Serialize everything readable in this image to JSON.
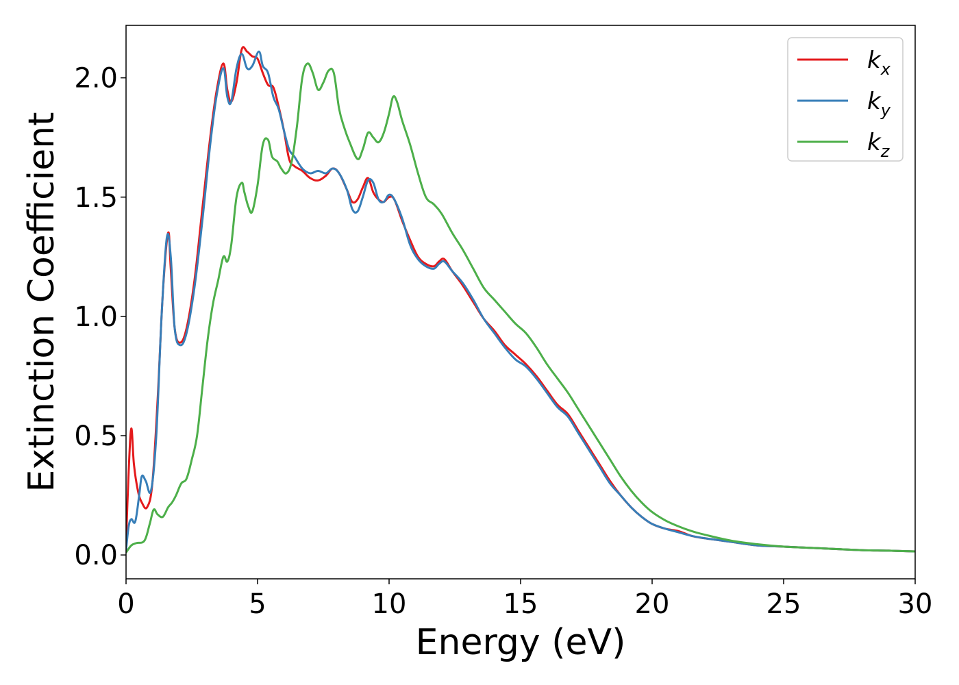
{
  "chart_data": {
    "type": "line",
    "xlabel": "Energy (eV)",
    "ylabel": "Extinction Coefficient",
    "xlim": [
      0,
      30
    ],
    "ylim": [
      -0.1,
      2.22
    ],
    "x_ticks": [
      0,
      5,
      10,
      15,
      20,
      25,
      30
    ],
    "x_tick_labels": [
      "0",
      "5",
      "10",
      "15",
      "20",
      "25",
      "30"
    ],
    "y_ticks": [
      0.0,
      0.5,
      1.0,
      1.5,
      2.0
    ],
    "y_tick_labels": [
      "0.0",
      "0.5",
      "1.0",
      "1.5",
      "2.0"
    ],
    "grid": false,
    "legend_position": "top-right",
    "series": [
      {
        "name": "kx",
        "legend_base": "k",
        "legend_sub": "x",
        "color": "#e41a1c",
        "x": [
          0,
          0.1,
          0.2,
          0.3,
          0.45,
          0.6,
          0.8,
          1.0,
          1.2,
          1.4,
          1.6,
          1.7,
          1.85,
          2.05,
          2.3,
          2.6,
          2.9,
          3.2,
          3.45,
          3.7,
          3.85,
          4.0,
          4.2,
          4.4,
          4.6,
          4.8,
          5.0,
          5.2,
          5.4,
          5.6,
          5.8,
          6.0,
          6.2,
          6.4,
          6.7,
          7.0,
          7.3,
          7.6,
          7.85,
          8.1,
          8.4,
          8.6,
          8.8,
          9.0,
          9.2,
          9.4,
          9.6,
          9.8,
          10.0,
          10.2,
          10.5,
          10.8,
          11.1,
          11.4,
          11.7,
          11.9,
          12.1,
          12.4,
          12.8,
          13.2,
          13.6,
          14.0,
          14.4,
          14.8,
          15.2,
          15.6,
          16.0,
          16.4,
          16.8,
          17.2,
          17.6,
          18.0,
          18.4,
          18.8,
          19.2,
          19.6,
          20.0,
          20.5,
          21.0,
          21.5,
          22.0,
          23.0,
          24.0,
          25.0,
          26.0,
          27.0,
          28.0,
          29.0,
          30.0
        ],
        "y": [
          0.05,
          0.35,
          0.53,
          0.38,
          0.27,
          0.22,
          0.2,
          0.3,
          0.65,
          1.1,
          1.35,
          1.2,
          0.95,
          0.89,
          0.95,
          1.15,
          1.45,
          1.75,
          1.95,
          2.06,
          1.95,
          1.9,
          1.98,
          2.12,
          2.11,
          2.09,
          2.08,
          2.02,
          1.97,
          1.96,
          1.88,
          1.78,
          1.66,
          1.63,
          1.61,
          1.58,
          1.57,
          1.59,
          1.62,
          1.6,
          1.53,
          1.48,
          1.49,
          1.54,
          1.58,
          1.52,
          1.49,
          1.48,
          1.5,
          1.49,
          1.4,
          1.32,
          1.25,
          1.22,
          1.21,
          1.23,
          1.24,
          1.19,
          1.13,
          1.06,
          0.99,
          0.94,
          0.88,
          0.84,
          0.8,
          0.75,
          0.69,
          0.63,
          0.59,
          0.52,
          0.45,
          0.38,
          0.31,
          0.25,
          0.2,
          0.16,
          0.13,
          0.11,
          0.1,
          0.08,
          0.07,
          0.055,
          0.04,
          0.035,
          0.03,
          0.025,
          0.02,
          0.018,
          0.015
        ]
      },
      {
        "name": "ky",
        "legend_base": "k",
        "legend_sub": "y",
        "color": "#377eb8",
        "x": [
          0,
          0.1,
          0.2,
          0.35,
          0.5,
          0.6,
          0.75,
          0.95,
          1.15,
          1.35,
          1.55,
          1.7,
          1.85,
          2.05,
          2.3,
          2.6,
          2.9,
          3.2,
          3.45,
          3.7,
          3.85,
          4.0,
          4.2,
          4.4,
          4.6,
          4.8,
          5.05,
          5.2,
          5.4,
          5.6,
          5.8,
          6.0,
          6.2,
          6.4,
          6.7,
          7.0,
          7.3,
          7.6,
          7.85,
          8.1,
          8.4,
          8.6,
          8.8,
          9.0,
          9.2,
          9.4,
          9.6,
          9.8,
          10.0,
          10.2,
          10.5,
          10.8,
          11.1,
          11.4,
          11.7,
          11.9,
          12.1,
          12.4,
          12.8,
          13.2,
          13.6,
          14.0,
          14.4,
          14.8,
          15.2,
          15.6,
          16.0,
          16.4,
          16.8,
          17.2,
          17.6,
          18.0,
          18.4,
          18.8,
          19.2,
          19.6,
          20.0,
          20.5,
          21.0,
          21.5,
          22.0,
          23.0,
          24.0,
          25.0,
          26.0,
          27.0,
          28.0,
          29.0,
          30.0
        ],
        "y": [
          0.02,
          0.12,
          0.15,
          0.14,
          0.25,
          0.33,
          0.31,
          0.27,
          0.5,
          1.0,
          1.33,
          1.25,
          0.95,
          0.88,
          0.93,
          1.12,
          1.4,
          1.72,
          1.93,
          2.04,
          1.92,
          1.9,
          2.04,
          2.1,
          2.04,
          2.05,
          2.11,
          2.05,
          2.02,
          1.92,
          1.87,
          1.78,
          1.7,
          1.67,
          1.62,
          1.6,
          1.61,
          1.6,
          1.62,
          1.6,
          1.53,
          1.45,
          1.44,
          1.5,
          1.57,
          1.56,
          1.49,
          1.48,
          1.51,
          1.49,
          1.41,
          1.3,
          1.24,
          1.21,
          1.2,
          1.22,
          1.23,
          1.19,
          1.14,
          1.07,
          0.99,
          0.93,
          0.87,
          0.82,
          0.79,
          0.74,
          0.68,
          0.62,
          0.58,
          0.51,
          0.44,
          0.37,
          0.3,
          0.25,
          0.2,
          0.16,
          0.13,
          0.11,
          0.095,
          0.08,
          0.07,
          0.055,
          0.04,
          0.035,
          0.03,
          0.025,
          0.02,
          0.018,
          0.015
        ]
      },
      {
        "name": "kz",
        "legend_base": "k",
        "legend_sub": "z",
        "color": "#4daf4a",
        "x": [
          0,
          0.2,
          0.4,
          0.7,
          0.9,
          1.05,
          1.2,
          1.4,
          1.6,
          1.75,
          1.9,
          2.1,
          2.3,
          2.5,
          2.7,
          2.9,
          3.1,
          3.3,
          3.5,
          3.7,
          3.85,
          4.0,
          4.2,
          4.4,
          4.5,
          4.65,
          4.8,
          5.0,
          5.2,
          5.4,
          5.55,
          5.75,
          5.9,
          6.1,
          6.3,
          6.5,
          6.7,
          6.9,
          7.1,
          7.3,
          7.5,
          7.7,
          7.9,
          8.1,
          8.3,
          8.5,
          8.8,
          9.0,
          9.2,
          9.4,
          9.6,
          9.8,
          10.0,
          10.15,
          10.3,
          10.5,
          10.8,
          11.1,
          11.4,
          11.7,
          12.0,
          12.4,
          12.8,
          13.2,
          13.6,
          14.0,
          14.4,
          14.8,
          15.2,
          15.6,
          16.0,
          16.4,
          16.8,
          17.2,
          17.6,
          18.0,
          18.4,
          18.8,
          19.2,
          19.6,
          20.0,
          20.5,
          21.0,
          21.5,
          22.0,
          23.0,
          24.0,
          25.0,
          26.0,
          27.0,
          28.0,
          29.0,
          30.0
        ],
        "y": [
          0.01,
          0.04,
          0.05,
          0.06,
          0.13,
          0.19,
          0.17,
          0.16,
          0.2,
          0.22,
          0.25,
          0.3,
          0.32,
          0.4,
          0.5,
          0.7,
          0.9,
          1.05,
          1.15,
          1.25,
          1.23,
          1.3,
          1.5,
          1.56,
          1.52,
          1.46,
          1.44,
          1.55,
          1.72,
          1.74,
          1.67,
          1.65,
          1.62,
          1.6,
          1.65,
          1.8,
          2.0,
          2.06,
          2.02,
          1.95,
          1.98,
          2.03,
          2.02,
          1.87,
          1.79,
          1.73,
          1.66,
          1.7,
          1.77,
          1.75,
          1.73,
          1.77,
          1.85,
          1.92,
          1.9,
          1.82,
          1.72,
          1.6,
          1.5,
          1.47,
          1.43,
          1.35,
          1.28,
          1.2,
          1.12,
          1.07,
          1.02,
          0.97,
          0.93,
          0.87,
          0.8,
          0.74,
          0.68,
          0.61,
          0.54,
          0.47,
          0.4,
          0.33,
          0.27,
          0.22,
          0.18,
          0.145,
          0.12,
          0.1,
          0.085,
          0.06,
          0.045,
          0.035,
          0.03,
          0.025,
          0.02,
          0.018,
          0.015
        ]
      }
    ]
  }
}
